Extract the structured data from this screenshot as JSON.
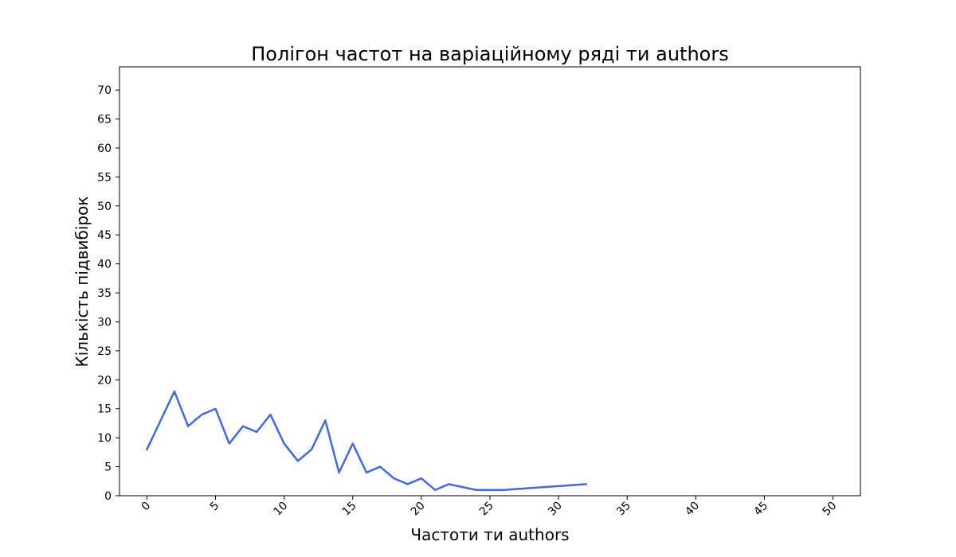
{
  "chart_data": {
    "type": "line",
    "title": "Полігон частот на варіаційному ряді ти authors",
    "xlabel": "Частоти ти authors",
    "ylabel": "Кількість підвибірок",
    "xlim": [
      -2,
      52
    ],
    "ylim": [
      0,
      74
    ],
    "xticks": [
      0,
      5,
      10,
      15,
      20,
      25,
      30,
      35,
      40,
      45,
      50
    ],
    "yticks": [
      0,
      5,
      10,
      15,
      20,
      25,
      30,
      35,
      40,
      45,
      50,
      55,
      60,
      65,
      70
    ],
    "xtick_rotation_deg": 45,
    "grid": false,
    "legend": "none",
    "series": [
      {
        "color": "#4169e1",
        "x": [
          0,
          2,
          3,
          4,
          5,
          6,
          7,
          8,
          9,
          10,
          11,
          12,
          13,
          14,
          15,
          16,
          17,
          18,
          19,
          20,
          21,
          22,
          24,
          26,
          32
        ],
        "y": [
          8,
          18,
          12,
          14,
          15,
          9,
          12,
          11,
          14,
          9,
          6,
          8,
          13,
          4,
          9,
          4,
          5,
          3,
          2,
          3,
          1,
          2,
          1,
          1,
          2
        ]
      }
    ]
  }
}
